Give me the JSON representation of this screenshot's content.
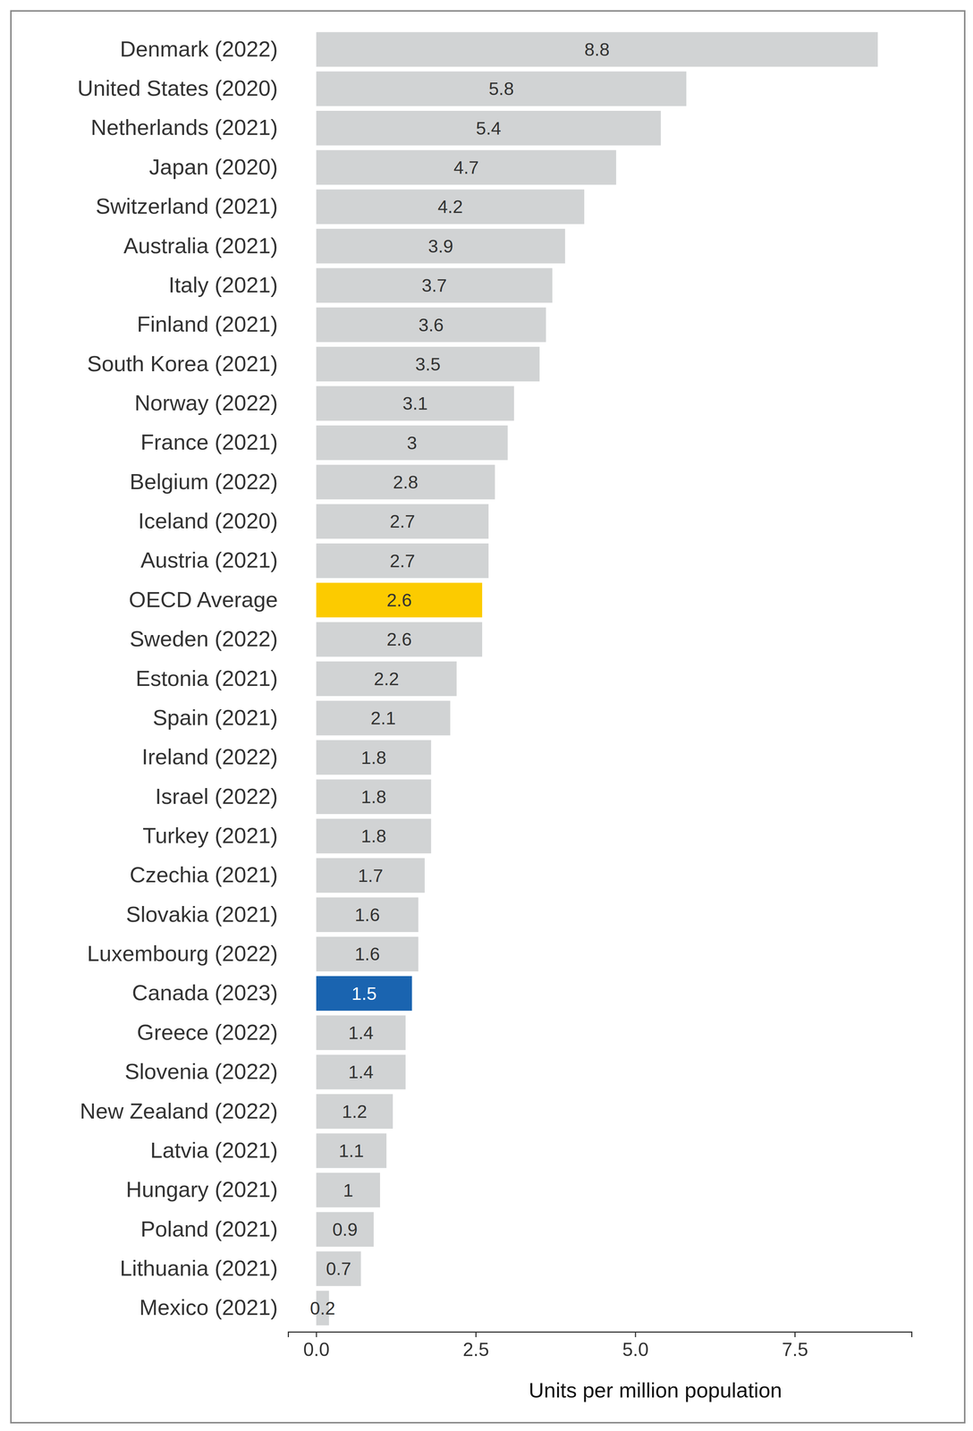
{
  "chart_data": {
    "type": "bar",
    "orientation": "horizontal",
    "data_labels": true,
    "grid": false,
    "xlabel": "Units per million population",
    "categories": [
      "Denmark (2022)",
      "United States (2020)",
      "Netherlands (2021)",
      "Japan (2020)",
      "Switzerland (2021)",
      "Australia (2021)",
      "Italy (2021)",
      "Finland (2021)",
      "South Korea (2021)",
      "Norway (2022)",
      "France (2021)",
      "Belgium (2022)",
      "Iceland (2020)",
      "Austria (2021)",
      "OECD Average",
      "Sweden (2022)",
      "Estonia (2021)",
      "Spain (2021)",
      "Ireland (2022)",
      "Israel (2022)",
      "Turkey (2021)",
      "Czechia (2021)",
      "Slovakia (2021)",
      "Luxembourg (2022)",
      "Canada (2023)",
      "Greece (2022)",
      "Slovenia (2022)",
      "New Zealand (2022)",
      "Latvia (2021)",
      "Hungary (2021)",
      "Poland (2021)",
      "Lithuania (2021)",
      "Mexico (2021)"
    ],
    "values": [
      8.8,
      5.8,
      5.4,
      4.7,
      4.2,
      3.9,
      3.7,
      3.6,
      3.5,
      3.1,
      3,
      2.8,
      2.7,
      2.7,
      2.6,
      2.6,
      2.2,
      2.1,
      1.8,
      1.8,
      1.8,
      1.7,
      1.6,
      1.6,
      1.5,
      1.4,
      1.4,
      1.2,
      1.1,
      1,
      0.9,
      0.7,
      0.2
    ],
    "colors": [
      "#d1d3d4",
      "#d1d3d4",
      "#d1d3d4",
      "#d1d3d4",
      "#d1d3d4",
      "#d1d3d4",
      "#d1d3d4",
      "#d1d3d4",
      "#d1d3d4",
      "#d1d3d4",
      "#d1d3d4",
      "#d1d3d4",
      "#d1d3d4",
      "#d1d3d4",
      "#fccb00",
      "#d1d3d4",
      "#d1d3d4",
      "#d1d3d4",
      "#d1d3d4",
      "#d1d3d4",
      "#d1d3d4",
      "#d1d3d4",
      "#d1d3d4",
      "#d1d3d4",
      "#1a64b0",
      "#d1d3d4",
      "#d1d3d4",
      "#d1d3d4",
      "#d1d3d4",
      "#d1d3d4",
      "#d1d3d4",
      "#d1d3d4",
      "#d1d3d4"
    ],
    "xlim": [
      -0.44,
      9.33
    ],
    "xticks": [
      {
        "value": 0,
        "label": "0.0"
      },
      2.5,
      {
        "value": 5,
        "label": "5.0"
      },
      7.5
    ]
  }
}
